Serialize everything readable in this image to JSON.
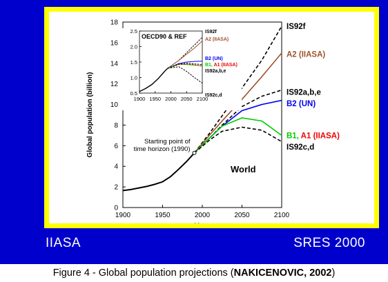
{
  "slide": {
    "brand_left": "IIASA",
    "brand_right": "SRES 2000",
    "background_color": "#0000cc",
    "frame_color": "#ffff00"
  },
  "caption": {
    "prefix": "Figure 4 - Global population projections (",
    "citation": "NAKICENOVIC, 2002",
    "suffix": ")"
  },
  "chart_data": [
    {
      "type": "line",
      "title": "World",
      "xlabel": "Year",
      "ylabel": "Global population (billion)",
      "xlim": [
        1900,
        2100
      ],
      "ylim": [
        0,
        18
      ],
      "xticks": [
        1900,
        1950,
        2000,
        2050,
        2100
      ],
      "yticks": [
        0,
        2,
        4,
        6,
        8,
        10,
        12,
        14,
        16,
        18
      ],
      "annotation": {
        "text_line1": "Starting point of",
        "text_line2": "time horizon (1990)",
        "x": 1990,
        "y": 5.3
      },
      "history": {
        "x": [
          1900,
          1910,
          1920,
          1930,
          1940,
          1950,
          1960,
          1970,
          1980,
          1990
        ],
        "y": [
          1.65,
          1.75,
          1.9,
          2.05,
          2.25,
          2.5,
          3.0,
          3.7,
          4.45,
          5.3
        ]
      },
      "series": [
        {
          "name": "IS92f",
          "color": "#000000",
          "dash": true,
          "x": [
            1990,
            2010,
            2025,
            2050,
            2075,
            2100
          ],
          "y": [
            5.3,
            7.3,
            8.9,
            11.6,
            14.3,
            17.6
          ]
        },
        {
          "name": "A2 (IIASA)",
          "color": "#a0522d",
          "dash": false,
          "x": [
            1990,
            2010,
            2025,
            2050,
            2075,
            2100
          ],
          "y": [
            5.3,
            7.1,
            8.4,
            10.5,
            12.7,
            15.0
          ]
        },
        {
          "name": "IS92a,b,e",
          "color": "#000000",
          "dash": true,
          "x": [
            1990,
            2010,
            2025,
            2050,
            2075,
            2100
          ],
          "y": [
            5.3,
            6.8,
            8.0,
            9.8,
            10.8,
            11.4
          ]
        },
        {
          "name": "B2 (UN)",
          "color": "#0000ee",
          "dash": false,
          "x": [
            1990,
            2010,
            2025,
            2050,
            2075,
            2100
          ],
          "y": [
            5.3,
            6.8,
            7.9,
            9.4,
            10.0,
            10.4
          ]
        },
        {
          "name": "B1, A1 (IIASA)",
          "color": "#00cc00",
          "dash": false,
          "x": [
            1990,
            2010,
            2025,
            2050,
            2075,
            2100
          ],
          "y": [
            5.3,
            6.8,
            7.9,
            8.7,
            8.4,
            7.0
          ]
        },
        {
          "name": "IS92c,d",
          "color": "#000000",
          "dash": true,
          "x": [
            1990,
            2010,
            2025,
            2050,
            2075,
            2100
          ],
          "y": [
            5.3,
            6.6,
            7.4,
            7.8,
            7.5,
            6.4
          ]
        }
      ],
      "label_parts": {
        "IS92f": [
          {
            "text": "IS92f",
            "color": "#000000"
          }
        ],
        "A2 (IIASA)": [
          {
            "text": "A2 (IIASA)",
            "color": "#a0522d"
          }
        ],
        "IS92a,b,e": [
          {
            "text": "IS92a,b,e",
            "color": "#000000"
          }
        ],
        "B2 (UN)": [
          {
            "text": "B2 (UN)",
            "color": "#0000ee"
          }
        ],
        "B1, A1 (IIASA)": [
          {
            "text": "B1, ",
            "color": "#00cc00"
          },
          {
            "text": "A1 (IIASA)",
            "color": "#ee0000"
          }
        ],
        "IS92c,d": [
          {
            "text": "IS92c,d",
            "color": "#000000"
          }
        ]
      },
      "grid": false,
      "legend": "right"
    },
    {
      "type": "line",
      "title": "OECD90 & REF",
      "xlim": [
        1900,
        2100
      ],
      "ylim": [
        0.5,
        2.5
      ],
      "xticks": [
        1900,
        1950,
        2000,
        2050,
        2100
      ],
      "yticks": [
        0.5,
        1.0,
        1.5,
        2.0,
        2.5
      ],
      "history": {
        "x": [
          1900,
          1920,
          1940,
          1960,
          1980,
          1990
        ],
        "y": [
          0.55,
          0.65,
          0.78,
          0.97,
          1.2,
          1.3
        ]
      },
      "series": [
        {
          "name": "IS92f",
          "color": "#000000",
          "dash": true,
          "x": [
            1990,
            2025,
            2050,
            2075,
            2100
          ],
          "y": [
            1.3,
            1.55,
            1.8,
            2.05,
            2.3
          ]
        },
        {
          "name": "A2 (IIASA)",
          "color": "#a0522d",
          "dash": false,
          "x": [
            1990,
            2025,
            2050,
            2075,
            2100
          ],
          "y": [
            1.3,
            1.55,
            1.75,
            1.95,
            2.18
          ]
        },
        {
          "name": "B2 (UN)",
          "color": "#0000ee",
          "dash": false,
          "x": [
            1990,
            2025,
            2050,
            2075,
            2100
          ],
          "y": [
            1.3,
            1.45,
            1.5,
            1.52,
            1.53
          ]
        },
        {
          "name": "B1, A1 (IIASA)",
          "color": "#00cc00",
          "dash": false,
          "x": [
            1990,
            2025,
            2050,
            2075,
            2100
          ],
          "y": [
            1.3,
            1.43,
            1.42,
            1.4,
            1.38
          ]
        },
        {
          "name": "B1, A1 (IIASA)",
          "color": "#ee0000",
          "dash": true,
          "x": [
            1990,
            2025,
            2050,
            2075,
            2100
          ],
          "y": [
            1.3,
            1.42,
            1.44,
            1.41,
            1.37
          ]
        },
        {
          "name": "IS92a,b,e",
          "color": "#000000",
          "dash": true,
          "x": [
            1990,
            2025,
            2050,
            2075,
            2100
          ],
          "y": [
            1.3,
            1.44,
            1.46,
            1.44,
            1.42
          ]
        },
        {
          "name": "IS92c,d",
          "color": "#000000",
          "dash": true,
          "x": [
            1990,
            2025,
            2050,
            2075,
            2100
          ],
          "y": [
            1.3,
            1.35,
            1.2,
            1.0,
            0.82
          ]
        }
      ],
      "labels": [
        {
          "parts": [
            {
              "text": "IS92f",
              "color": "#000000"
            }
          ]
        },
        {
          "parts": [
            {
              "text": "A2 (IIASA)",
              "color": "#a0522d"
            }
          ]
        },
        {
          "parts": [
            {
              "text": "B2 (UN)",
              "color": "#0000ee"
            }
          ]
        },
        {
          "parts": [
            {
              "text": "B1, ",
              "color": "#00cc00"
            },
            {
              "text": "A1 (IIASA)",
              "color": "#ee0000"
            }
          ]
        },
        {
          "parts": [
            {
              "text": "IS92a,b,e",
              "color": "#000000"
            }
          ]
        },
        {
          "parts": [
            {
              "text": "IS92c,d",
              "color": "#000000"
            }
          ]
        }
      ],
      "grid": false
    }
  ]
}
